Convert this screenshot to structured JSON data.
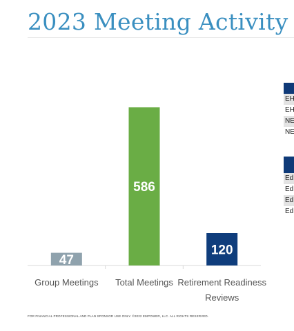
{
  "title": "2023 Meeting Activity",
  "footer": "FOR FINANCIAL PROFESSIONAL AND PLAN SPONSOR USE ONLY. ©2022 EMPOWER, LLC. ALL RIGHTS RESERVED.",
  "side_table_1": {
    "rows": [
      "EH",
      "EH",
      "NE",
      "NE"
    ]
  },
  "side_table_2": {
    "rows": [
      "Ed",
      "Ed",
      "Ed",
      "Ed"
    ]
  },
  "colors": {
    "title": "#3a8fc0",
    "group": "#8fa2ad",
    "total": "#6aad45",
    "retirement": "#0f3d7c",
    "side_header": "#0f3a78"
  },
  "chart_data": {
    "type": "bar",
    "categories": [
      "Group Meetings",
      "Total Meetings",
      "Retirement Readiness Reviews"
    ],
    "category_lines": [
      [
        "Group Meetings"
      ],
      [
        "Total Meetings"
      ],
      [
        "Retirement Readiness",
        "Reviews"
      ]
    ],
    "values": [
      47,
      586,
      120
    ],
    "data_labels": [
      "47",
      "586",
      "120"
    ],
    "colors": [
      "#8fa2ad",
      "#6aad45",
      "#0f3d7c"
    ],
    "title": "2023 Meeting Activity",
    "xlabel": "",
    "ylabel": "",
    "ylim": [
      0,
      600
    ],
    "grid": false,
    "legend": "none"
  }
}
